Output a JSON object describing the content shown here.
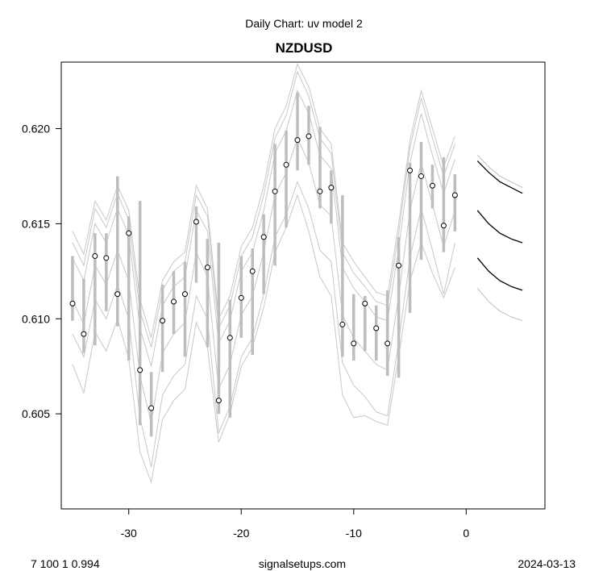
{
  "chart_data": {
    "type": "line",
    "subtitle": "Daily Chart: uv model 2",
    "title": "NZDUSD",
    "xlim": [
      -36,
      7
    ],
    "ylim": [
      0.6,
      0.6235
    ],
    "x_ticks": [
      -30,
      -20,
      -10,
      0
    ],
    "y_ticks": [
      0.605,
      0.61,
      0.615,
      0.62
    ],
    "grid": false,
    "colors": {
      "band": "#c8c8c8",
      "error_bar": "#bdbdbd",
      "forecast": "#000000",
      "forecast_outer": "#c0c0c0",
      "point_fill": "#ffffff",
      "point_stroke": "#000000"
    },
    "x": [
      -35,
      -34,
      -33,
      -32,
      -31,
      -30,
      -29,
      -28,
      -27,
      -26,
      -25,
      -24,
      -23,
      -22,
      -21,
      -20,
      -19,
      -18,
      -17,
      -16,
      -15,
      -14,
      -13,
      -12,
      -11,
      -10,
      -9,
      -8,
      -7,
      -6,
      -5,
      -4,
      -3,
      -2,
      -1
    ],
    "close": [
      0.6108,
      0.6092,
      0.6133,
      0.6132,
      0.6113,
      0.6145,
      0.6073,
      0.6053,
      0.6099,
      0.6109,
      0.6113,
      0.6151,
      0.6127,
      0.6057,
      0.609,
      0.6111,
      0.6125,
      0.6143,
      0.6167,
      0.6181,
      0.6194,
      0.6196,
      0.6167,
      0.6169,
      0.6097,
      0.6087,
      0.6108,
      0.6095,
      0.6087,
      0.6128,
      0.6178,
      0.6175,
      0.617,
      0.6149,
      0.6165
    ],
    "error_bars": [
      [
        0.6099,
        0.6133
      ],
      [
        0.6082,
        0.6121
      ],
      [
        0.6086,
        0.6145
      ],
      [
        0.6104,
        0.6145
      ],
      [
        0.6096,
        0.6175
      ],
      [
        0.6078,
        0.6154
      ],
      [
        0.6044,
        0.6162
      ],
      [
        0.6038,
        0.6072
      ],
      [
        0.6072,
        0.6118
      ],
      [
        0.6092,
        0.6125
      ],
      [
        0.608,
        0.613
      ],
      [
        0.6119,
        0.6159
      ],
      [
        0.6085,
        0.6142
      ],
      [
        0.605,
        0.614
      ],
      [
        0.6048,
        0.611
      ],
      [
        0.609,
        0.6133
      ],
      [
        0.6081,
        0.6137
      ],
      [
        0.6113,
        0.6155
      ],
      [
        0.6128,
        0.6192
      ],
      [
        0.6148,
        0.6199
      ],
      [
        0.6178,
        0.6219
      ],
      [
        0.6181,
        0.6212
      ],
      [
        0.6158,
        0.6201
      ],
      [
        0.615,
        0.6178
      ],
      [
        0.608,
        0.6165
      ],
      [
        0.6078,
        0.6113
      ],
      [
        0.6083,
        0.6112
      ],
      [
        0.6078,
        0.6107
      ],
      [
        0.607,
        0.6115
      ],
      [
        0.6069,
        0.6143
      ],
      [
        0.6103,
        0.6182
      ],
      [
        0.6131,
        0.6193
      ],
      [
        0.6158,
        0.6181
      ],
      [
        0.6135,
        0.6185
      ],
      [
        0.6146,
        0.6176
      ]
    ],
    "band_lines": [
      [
        0.6146,
        0.6134,
        0.6162,
        0.6152,
        0.617,
        0.6157,
        0.611,
        0.609,
        0.612,
        0.613,
        0.6135,
        0.617,
        0.6158,
        0.61,
        0.6112,
        0.6138,
        0.6148,
        0.617,
        0.62,
        0.6212,
        0.6234,
        0.6222,
        0.62,
        0.6192,
        0.614,
        0.613,
        0.6122,
        0.6114,
        0.6112,
        0.615,
        0.6194,
        0.622,
        0.62,
        0.618,
        0.6196
      ],
      [
        0.614,
        0.6128,
        0.6158,
        0.6148,
        0.6166,
        0.6152,
        0.6104,
        0.6085,
        0.6115,
        0.6125,
        0.613,
        0.6165,
        0.6154,
        0.6095,
        0.6107,
        0.6133,
        0.6143,
        0.6165,
        0.6195,
        0.6207,
        0.623,
        0.6217,
        0.6195,
        0.6187,
        0.6135,
        0.6124,
        0.6117,
        0.6109,
        0.6107,
        0.6145,
        0.619,
        0.6216,
        0.6195,
        0.6175,
        0.6192
      ],
      [
        0.6132,
        0.612,
        0.615,
        0.614,
        0.6158,
        0.6144,
        0.6095,
        0.6075,
        0.6107,
        0.6117,
        0.6122,
        0.6157,
        0.6146,
        0.6087,
        0.6099,
        0.6125,
        0.6135,
        0.6157,
        0.6187,
        0.6199,
        0.622,
        0.6208,
        0.6186,
        0.6179,
        0.6127,
        0.6116,
        0.6109,
        0.6101,
        0.6099,
        0.6137,
        0.6182,
        0.6208,
        0.6186,
        0.6166,
        0.6184
      ],
      [
        0.611,
        0.6097,
        0.6128,
        0.6118,
        0.6136,
        0.612,
        0.607,
        0.6045,
        0.6082,
        0.6092,
        0.6098,
        0.6135,
        0.6122,
        0.6063,
        0.6076,
        0.6102,
        0.6112,
        0.6135,
        0.6165,
        0.6177,
        0.6195,
        0.6182,
        0.616,
        0.6154,
        0.6102,
        0.609,
        0.6083,
        0.6076,
        0.6073,
        0.6112,
        0.6157,
        0.6182,
        0.616,
        0.6138,
        0.6157
      ],
      [
        0.6092,
        0.608,
        0.611,
        0.61,
        0.6118,
        0.61,
        0.6048,
        0.6022,
        0.606,
        0.607,
        0.6076,
        0.6112,
        0.61,
        0.604,
        0.6054,
        0.608,
        0.609,
        0.6113,
        0.6143,
        0.6155,
        0.6172,
        0.6158,
        0.6136,
        0.613,
        0.6077,
        0.6065,
        0.6059,
        0.6051,
        0.6049,
        0.6088,
        0.6132,
        0.6158,
        0.6136,
        0.6113,
        0.614
      ],
      [
        0.6076,
        0.6061,
        0.6093,
        0.6083,
        0.61,
        0.6079,
        0.603,
        0.6014,
        0.6047,
        0.6057,
        0.6063,
        0.6098,
        0.6085,
        0.6035,
        0.605,
        0.6075,
        0.6085,
        0.6106,
        0.6135,
        0.6148,
        0.6165,
        0.6146,
        0.6122,
        0.6112,
        0.606,
        0.6048,
        0.6049,
        0.6046,
        0.6044,
        0.608,
        0.612,
        0.614,
        0.6124,
        0.6111,
        0.6127
      ]
    ],
    "forecast_x": [
      1,
      2,
      3,
      4,
      5
    ],
    "forecast_lines": [
      {
        "style": "outer",
        "values": [
          0.6186,
          0.618,
          0.6175,
          0.6172,
          0.6169
        ]
      },
      {
        "style": "inner",
        "values": [
          0.6183,
          0.6177,
          0.6172,
          0.6169,
          0.6166
        ]
      },
      {
        "style": "inner",
        "values": [
          0.6157,
          0.615,
          0.6145,
          0.6142,
          0.614
        ]
      },
      {
        "style": "inner",
        "values": [
          0.6132,
          0.6125,
          0.612,
          0.6117,
          0.6115
        ]
      },
      {
        "style": "outer",
        "values": [
          0.6116,
          0.6109,
          0.6104,
          0.6101,
          0.6099
        ]
      }
    ]
  },
  "footer": {
    "left": "7 100 1 0.994",
    "center": "signalsetups.com",
    "right": "2024-03-13"
  }
}
